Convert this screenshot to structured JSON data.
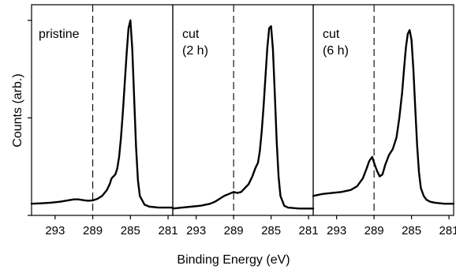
{
  "chart_data": {
    "type": "line",
    "xlabel": "Binding Energy (eV)",
    "ylabel": "Counts (arb.)",
    "x_reversed": true,
    "xlim": [
      295.5,
      280.5
    ],
    "ylim": [
      0,
      1.08
    ],
    "x_ticks": [
      "293",
      "289",
      "285",
      "281"
    ],
    "y_ticks_labeled": false,
    "reference_line_x": 289,
    "panels": [
      {
        "label_lines": [
          "pristine"
        ],
        "x": [
          295.5,
          294.5,
          293.5,
          292.5,
          291.5,
          291.0,
          290.5,
          290.0,
          289.5,
          289.0,
          288.5,
          288.0,
          287.5,
          287.2,
          287.0,
          286.8,
          286.6,
          286.4,
          286.2,
          286.0,
          285.8,
          285.6,
          285.4,
          285.2,
          285.0,
          284.8,
          284.6,
          284.4,
          284.2,
          284.0,
          283.5,
          283.0,
          282.0,
          281.0,
          280.5
        ],
        "y": [
          0.06,
          0.062,
          0.065,
          0.07,
          0.078,
          0.082,
          0.082,
          0.078,
          0.075,
          0.077,
          0.085,
          0.1,
          0.13,
          0.16,
          0.19,
          0.2,
          0.21,
          0.24,
          0.3,
          0.4,
          0.53,
          0.68,
          0.83,
          0.96,
          1.0,
          0.85,
          0.6,
          0.35,
          0.18,
          0.1,
          0.055,
          0.045,
          0.04,
          0.04,
          0.04
        ]
      },
      {
        "label_lines": [
          "cut",
          "(2 h)"
        ],
        "x": [
          295.5,
          294.5,
          293.5,
          292.5,
          291.5,
          291.0,
          290.5,
          290.0,
          289.5,
          289.0,
          288.6,
          288.2,
          287.8,
          287.4,
          287.0,
          286.7,
          286.4,
          286.2,
          286.0,
          285.8,
          285.6,
          285.4,
          285.2,
          285.0,
          284.8,
          284.6,
          284.4,
          284.2,
          284.0,
          283.6,
          283.2,
          282.0,
          281.0,
          280.5
        ],
        "y": [
          0.035,
          0.04,
          0.045,
          0.05,
          0.06,
          0.07,
          0.085,
          0.1,
          0.11,
          0.12,
          0.115,
          0.12,
          0.14,
          0.16,
          0.2,
          0.24,
          0.27,
          0.33,
          0.43,
          0.56,
          0.71,
          0.86,
          0.96,
          0.97,
          0.85,
          0.62,
          0.38,
          0.2,
          0.1,
          0.05,
          0.04,
          0.035,
          0.035,
          0.035
        ]
      },
      {
        "label_lines": [
          "cut",
          "(6 h)"
        ],
        "x": [
          295.5,
          294.5,
          293.5,
          292.5,
          291.5,
          290.8,
          290.2,
          289.8,
          289.5,
          289.2,
          289.0,
          288.7,
          288.4,
          288.1,
          287.8,
          287.4,
          287.0,
          286.6,
          286.3,
          286.0,
          285.8,
          285.6,
          285.4,
          285.2,
          285.0,
          284.8,
          284.6,
          284.4,
          284.2,
          284.0,
          283.7,
          283.4,
          283.0,
          282.5,
          281.5,
          280.5
        ],
        "y": [
          0.1,
          0.11,
          0.115,
          0.12,
          0.13,
          0.15,
          0.19,
          0.24,
          0.28,
          0.3,
          0.27,
          0.23,
          0.2,
          0.21,
          0.26,
          0.31,
          0.34,
          0.4,
          0.5,
          0.63,
          0.75,
          0.86,
          0.93,
          0.95,
          0.9,
          0.75,
          0.55,
          0.36,
          0.22,
          0.14,
          0.1,
          0.08,
          0.07,
          0.065,
          0.06,
          0.06
        ]
      }
    ]
  }
}
